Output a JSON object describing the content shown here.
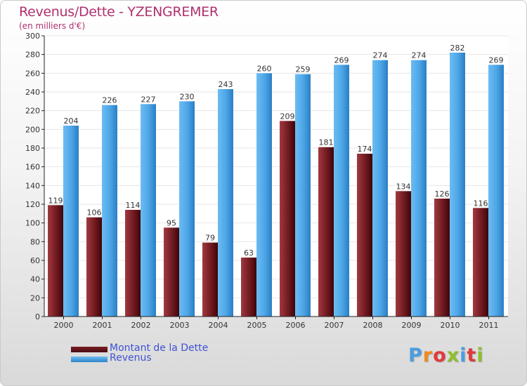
{
  "chart_title": "Revenus/Dette - YZENGREMER",
  "chart_subtitle": "(en milliers d'€)",
  "colors": {
    "title": "#b03070",
    "legend_text": "#3f52d6",
    "debt": "#7a1f26",
    "revenue": "#4fa7e8",
    "axis": "#222222",
    "grid": "#e6e6e6"
  },
  "legend": {
    "debt_label": "Montant de la Dette",
    "revenue_label": "Revenus"
  },
  "logo": {
    "text": "Proxiti",
    "colors": [
      "#4a9ee0",
      "#f08a1c",
      "#e03a3a",
      "#8dbf2a",
      "#4a9ee0",
      "#e03a3a",
      "#8dbf2a"
    ]
  },
  "chart_data": {
    "type": "bar",
    "title": "Revenus/Dette - YZENGREMER",
    "subtitle": "(en milliers d'€)",
    "xlabel": "",
    "ylabel": "",
    "categories": [
      "2000",
      "2001",
      "2002",
      "2003",
      "2004",
      "2005",
      "2006",
      "2007",
      "2008",
      "2009",
      "2010",
      "2011"
    ],
    "series": [
      {
        "name": "Montant de la Dette",
        "values": [
          119,
          106,
          114,
          95,
          79,
          63,
          209,
          181,
          174,
          134,
          126,
          116
        ]
      },
      {
        "name": "Revenus",
        "values": [
          204,
          226,
          227,
          230,
          243,
          260,
          259,
          269,
          274,
          274,
          282,
          269
        ]
      }
    ],
    "ylim": [
      0,
      300
    ],
    "ytick_step": 20,
    "grid": true,
    "legend_position": "bottom-left"
  }
}
